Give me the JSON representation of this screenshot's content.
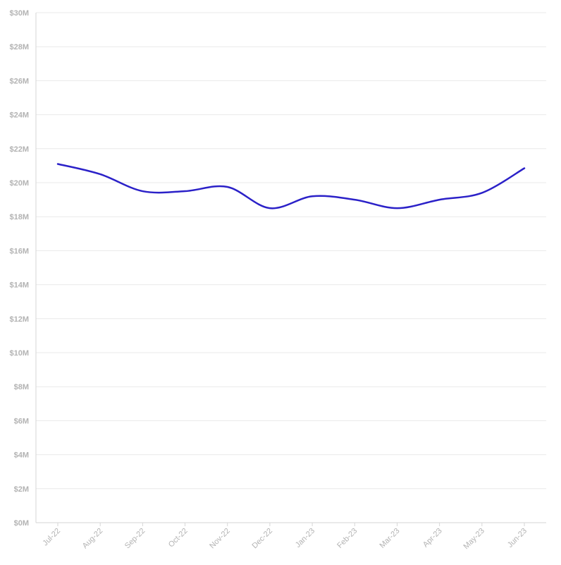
{
  "chart_data": {
    "type": "line",
    "title": "",
    "xlabel": "",
    "ylabel": "",
    "categories": [
      "Jul-22",
      "Aug-22",
      "Sep-22",
      "Oct-22",
      "Nov-22",
      "Dec-22",
      "Jan-23",
      "Feb-23",
      "Mar-23",
      "Apr-23",
      "May-23",
      "Jun-23"
    ],
    "series": [
      {
        "values": [
          21.1,
          20.5,
          19.5,
          19.5,
          19.75,
          18.5,
          19.2,
          19.0,
          18.5,
          19.0,
          19.4,
          20.85
        ],
        "color": "#2b21c8"
      }
    ],
    "ylim": [
      0,
      30
    ],
    "yticks": [
      0,
      2,
      4,
      6,
      8,
      10,
      12,
      14,
      16,
      18,
      20,
      22,
      24,
      26,
      28,
      30
    ],
    "ytick_labels": [
      "$0M",
      "$2M",
      "$4M",
      "$6M",
      "$8M",
      "$10M",
      "$12M",
      "$14M",
      "$16M",
      "$18M",
      "$20M",
      "$22M",
      "$24M",
      "$26M",
      "$28M",
      "$30M"
    ],
    "grid": true,
    "legend": "none"
  }
}
